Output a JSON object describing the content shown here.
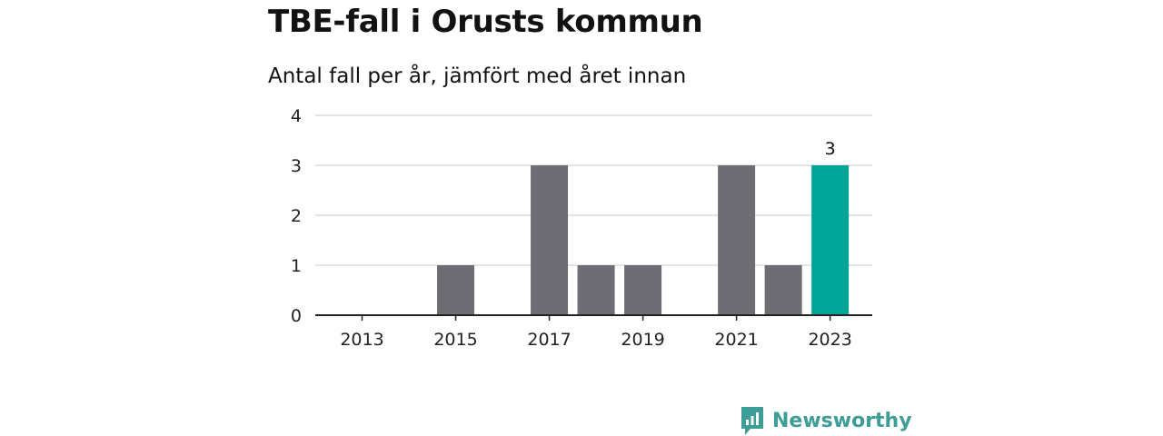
{
  "title": "TBE-fall i Orusts kommun",
  "subtitle": "Antal fall per år, jämfört med året innan",
  "brand": {
    "name": "Newsworthy",
    "icon": "newsworthy-logo-icon",
    "color": "#3e9d96"
  },
  "colors": {
    "bar": "#6e6d73",
    "highlight": "#00a597",
    "grid": "#dcdcdc",
    "axis": "#222222"
  },
  "chart_data": {
    "type": "bar",
    "title": "TBE-fall i Orusts kommun",
    "subtitle": "Antal fall per år, jämfört med året innan",
    "xlabel": "",
    "ylabel": "",
    "categories": [
      "2013",
      "2014",
      "2015",
      "2016",
      "2017",
      "2018",
      "2019",
      "2020",
      "2021",
      "2022",
      "2023"
    ],
    "values": [
      0,
      0,
      1,
      0,
      3,
      1,
      1,
      0,
      3,
      1,
      3
    ],
    "highlight": "2023",
    "data_labels": [
      {
        "category": "2023",
        "text": "3"
      }
    ],
    "xticks": [
      "2013",
      "2015",
      "2017",
      "2019",
      "2021",
      "2023"
    ],
    "yticks": [
      0,
      1,
      2,
      3,
      4
    ],
    "ylim": [
      0,
      4
    ],
    "grid": true,
    "legend": "none"
  }
}
